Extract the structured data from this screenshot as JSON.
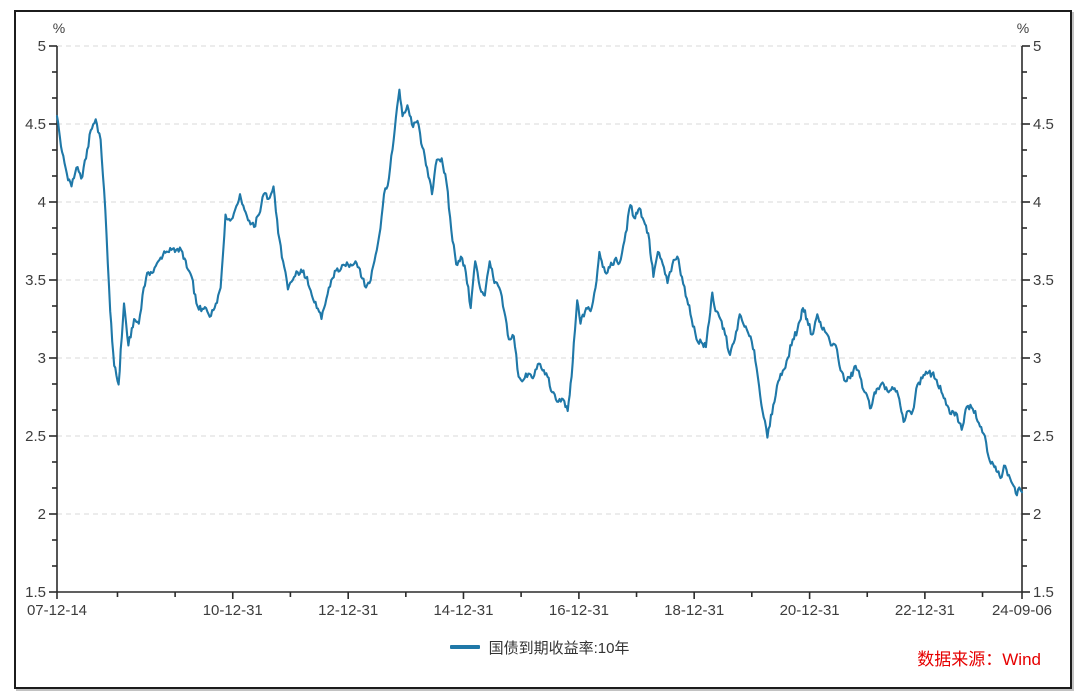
{
  "source_note": {
    "text": "数据来源：Wind",
    "color": "#e60000"
  },
  "chart_data": {
    "type": "line",
    "title": "",
    "legend": {
      "position": "bottom-center",
      "label": "国债到期收益率:10年"
    },
    "y_axis": {
      "unit_label": "%",
      "min": 1.5,
      "max": 5,
      "grid": "dashed",
      "ticks": [
        {
          "value": 5,
          "label": "5"
        },
        {
          "value": 4.5,
          "label": "4.5"
        },
        {
          "value": 4,
          "label": "4"
        },
        {
          "value": 3.5,
          "label": "3.5"
        },
        {
          "value": 3,
          "label": "3"
        },
        {
          "value": 2.5,
          "label": "2.5"
        },
        {
          "value": 2,
          "label": "2"
        },
        {
          "value": 1.5,
          "label": "1.5"
        }
      ]
    },
    "x_axis": {
      "start": "2007-12-14",
      "end": "2024-09-06",
      "ticks": [
        {
          "date": "2007-12-14",
          "label": "07-12-14"
        },
        {
          "date": "2008-12-31",
          "label": ""
        },
        {
          "date": "2009-12-31",
          "label": ""
        },
        {
          "date": "2010-12-31",
          "label": "10-12-31"
        },
        {
          "date": "2011-12-31",
          "label": ""
        },
        {
          "date": "2012-12-31",
          "label": "12-12-31"
        },
        {
          "date": "2013-12-31",
          "label": ""
        },
        {
          "date": "2014-12-31",
          "label": "14-12-31"
        },
        {
          "date": "2015-12-31",
          "label": ""
        },
        {
          "date": "2016-12-31",
          "label": "16-12-31"
        },
        {
          "date": "2017-12-31",
          "label": ""
        },
        {
          "date": "2018-12-31",
          "label": "18-12-31"
        },
        {
          "date": "2019-12-31",
          "label": ""
        },
        {
          "date": "2020-12-31",
          "label": "20-12-31"
        },
        {
          "date": "2021-12-31",
          "label": ""
        },
        {
          "date": "2022-12-31",
          "label": "22-12-31"
        },
        {
          "date": "2023-12-31",
          "label": ""
        },
        {
          "date": "2024-09-06",
          "label": "24-09-06"
        }
      ]
    },
    "style": {
      "line_color": "#1f78a8",
      "grid_color": "#d9d9d9",
      "axis_color": "#2b2b2b",
      "tick_label_color": "#3d3d3d"
    },
    "series": [
      {
        "name": "国债到期收益率:10年",
        "color": "#1f78a8",
        "points": [
          [
            "2007-12-14",
            4.55
          ],
          [
            "2008-01-15",
            4.32
          ],
          [
            "2008-02-15",
            4.18
          ],
          [
            "2008-03-15",
            4.1
          ],
          [
            "2008-04-15",
            4.22
          ],
          [
            "2008-05-15",
            4.15
          ],
          [
            "2008-06-15",
            4.28
          ],
          [
            "2008-07-15",
            4.46
          ],
          [
            "2008-08-15",
            4.53
          ],
          [
            "2008-09-15",
            4.4
          ],
          [
            "2008-10-15",
            3.95
          ],
          [
            "2008-11-15",
            3.3
          ],
          [
            "2008-12-10",
            2.95
          ],
          [
            "2009-01-07",
            2.83
          ],
          [
            "2009-02-10",
            3.35
          ],
          [
            "2009-03-10",
            3.08
          ],
          [
            "2009-04-15",
            3.25
          ],
          [
            "2009-05-15",
            3.22
          ],
          [
            "2009-06-15",
            3.45
          ],
          [
            "2009-07-15",
            3.55
          ],
          [
            "2009-08-15",
            3.55
          ],
          [
            "2009-09-15",
            3.62
          ],
          [
            "2009-10-15",
            3.66
          ],
          [
            "2009-11-15",
            3.68
          ],
          [
            "2009-12-15",
            3.7
          ],
          [
            "2010-01-15",
            3.7
          ],
          [
            "2010-02-15",
            3.68
          ],
          [
            "2010-03-15",
            3.58
          ],
          [
            "2010-04-15",
            3.52
          ],
          [
            "2010-05-15",
            3.35
          ],
          [
            "2010-06-15",
            3.3
          ],
          [
            "2010-07-15",
            3.32
          ],
          [
            "2010-08-15",
            3.27
          ],
          [
            "2010-09-15",
            3.35
          ],
          [
            "2010-10-15",
            3.45
          ],
          [
            "2010-11-15",
            3.92
          ],
          [
            "2010-12-15",
            3.88
          ],
          [
            "2011-01-15",
            3.95
          ],
          [
            "2011-02-15",
            4.05
          ],
          [
            "2011-03-15",
            3.95
          ],
          [
            "2011-04-15",
            3.88
          ],
          [
            "2011-05-15",
            3.84
          ],
          [
            "2011-06-15",
            3.92
          ],
          [
            "2011-07-15",
            4.05
          ],
          [
            "2011-08-15",
            4.02
          ],
          [
            "2011-09-15",
            4.1
          ],
          [
            "2011-10-15",
            3.8
          ],
          [
            "2011-11-15",
            3.62
          ],
          [
            "2011-12-15",
            3.44
          ],
          [
            "2012-01-15",
            3.5
          ],
          [
            "2012-02-15",
            3.55
          ],
          [
            "2012-03-15",
            3.55
          ],
          [
            "2012-04-15",
            3.52
          ],
          [
            "2012-05-15",
            3.4
          ],
          [
            "2012-06-15",
            3.32
          ],
          [
            "2012-07-15",
            3.25
          ],
          [
            "2012-08-15",
            3.38
          ],
          [
            "2012-09-15",
            3.5
          ],
          [
            "2012-10-15",
            3.56
          ],
          [
            "2012-11-15",
            3.57
          ],
          [
            "2012-12-15",
            3.59
          ],
          [
            "2013-01-15",
            3.6
          ],
          [
            "2013-02-15",
            3.62
          ],
          [
            "2013-03-15",
            3.57
          ],
          [
            "2013-04-15",
            3.46
          ],
          [
            "2013-05-15",
            3.48
          ],
          [
            "2013-06-15",
            3.62
          ],
          [
            "2013-07-15",
            3.78
          ],
          [
            "2013-08-15",
            4.05
          ],
          [
            "2013-09-15",
            4.15
          ],
          [
            "2013-10-15",
            4.4
          ],
          [
            "2013-11-20",
            4.72
          ],
          [
            "2013-12-10",
            4.55
          ],
          [
            "2014-01-10",
            4.62
          ],
          [
            "2014-02-15",
            4.48
          ],
          [
            "2014-03-15",
            4.52
          ],
          [
            "2014-04-15",
            4.35
          ],
          [
            "2014-05-15",
            4.22
          ],
          [
            "2014-06-15",
            4.05
          ],
          [
            "2014-07-15",
            4.27
          ],
          [
            "2014-08-15",
            4.28
          ],
          [
            "2014-09-15",
            4.12
          ],
          [
            "2014-10-15",
            3.82
          ],
          [
            "2014-11-15",
            3.6
          ],
          [
            "2014-12-15",
            3.65
          ],
          [
            "2015-01-15",
            3.55
          ],
          [
            "2015-02-15",
            3.32
          ],
          [
            "2015-03-15",
            3.62
          ],
          [
            "2015-04-15",
            3.45
          ],
          [
            "2015-05-15",
            3.4
          ],
          [
            "2015-06-15",
            3.62
          ],
          [
            "2015-07-15",
            3.48
          ],
          [
            "2015-08-15",
            3.45
          ],
          [
            "2015-09-15",
            3.3
          ],
          [
            "2015-10-15",
            3.12
          ],
          [
            "2015-11-15",
            3.14
          ],
          [
            "2015-12-15",
            2.88
          ],
          [
            "2016-01-15",
            2.86
          ],
          [
            "2016-02-15",
            2.9
          ],
          [
            "2016-03-15",
            2.87
          ],
          [
            "2016-04-15",
            2.96
          ],
          [
            "2016-05-15",
            2.92
          ],
          [
            "2016-06-15",
            2.88
          ],
          [
            "2016-07-15",
            2.78
          ],
          [
            "2016-08-15",
            2.72
          ],
          [
            "2016-09-15",
            2.74
          ],
          [
            "2016-10-21",
            2.66
          ],
          [
            "2016-11-15",
            2.88
          ],
          [
            "2016-12-20",
            3.37
          ],
          [
            "2017-01-10",
            3.22
          ],
          [
            "2017-02-15",
            3.32
          ],
          [
            "2017-03-15",
            3.3
          ],
          [
            "2017-04-15",
            3.45
          ],
          [
            "2017-05-10",
            3.68
          ],
          [
            "2017-06-15",
            3.55
          ],
          [
            "2017-07-15",
            3.58
          ],
          [
            "2017-08-15",
            3.63
          ],
          [
            "2017-09-15",
            3.61
          ],
          [
            "2017-10-15",
            3.75
          ],
          [
            "2017-11-22",
            3.98
          ],
          [
            "2017-12-15",
            3.9
          ],
          [
            "2018-01-18",
            3.96
          ],
          [
            "2018-02-15",
            3.88
          ],
          [
            "2018-03-15",
            3.8
          ],
          [
            "2018-04-17",
            3.52
          ],
          [
            "2018-05-15",
            3.68
          ],
          [
            "2018-06-15",
            3.6
          ],
          [
            "2018-07-15",
            3.48
          ],
          [
            "2018-08-15",
            3.6
          ],
          [
            "2018-09-15",
            3.65
          ],
          [
            "2018-10-15",
            3.52
          ],
          [
            "2018-11-15",
            3.38
          ],
          [
            "2018-12-15",
            3.25
          ],
          [
            "2019-01-15",
            3.12
          ],
          [
            "2019-02-15",
            3.1
          ],
          [
            "2019-03-15",
            3.07
          ],
          [
            "2019-04-25",
            3.42
          ],
          [
            "2019-05-15",
            3.3
          ],
          [
            "2019-06-15",
            3.25
          ],
          [
            "2019-07-15",
            3.15
          ],
          [
            "2019-08-15",
            3.02
          ],
          [
            "2019-09-15",
            3.12
          ],
          [
            "2019-10-15",
            3.28
          ],
          [
            "2019-11-15",
            3.2
          ],
          [
            "2019-12-15",
            3.14
          ],
          [
            "2020-01-15",
            3.05
          ],
          [
            "2020-02-15",
            2.82
          ],
          [
            "2020-03-15",
            2.62
          ],
          [
            "2020-04-08",
            2.49
          ],
          [
            "2020-05-15",
            2.7
          ],
          [
            "2020-06-15",
            2.85
          ],
          [
            "2020-07-15",
            2.92
          ],
          [
            "2020-08-15",
            3.0
          ],
          [
            "2020-09-15",
            3.12
          ],
          [
            "2020-10-15",
            3.18
          ],
          [
            "2020-11-19",
            3.32
          ],
          [
            "2020-12-15",
            3.25
          ],
          [
            "2021-01-15",
            3.15
          ],
          [
            "2021-02-18",
            3.28
          ],
          [
            "2021-03-15",
            3.2
          ],
          [
            "2021-04-15",
            3.16
          ],
          [
            "2021-05-15",
            3.08
          ],
          [
            "2021-06-15",
            3.08
          ],
          [
            "2021-07-15",
            2.92
          ],
          [
            "2021-08-15",
            2.85
          ],
          [
            "2021-09-15",
            2.87
          ],
          [
            "2021-10-18",
            2.95
          ],
          [
            "2021-11-15",
            2.88
          ],
          [
            "2021-12-15",
            2.78
          ],
          [
            "2022-01-24",
            2.68
          ],
          [
            "2022-02-15",
            2.78
          ],
          [
            "2022-03-15",
            2.8
          ],
          [
            "2022-04-15",
            2.83
          ],
          [
            "2022-05-15",
            2.78
          ],
          [
            "2022-06-15",
            2.8
          ],
          [
            "2022-07-15",
            2.76
          ],
          [
            "2022-08-18",
            2.59
          ],
          [
            "2022-09-15",
            2.66
          ],
          [
            "2022-10-15",
            2.66
          ],
          [
            "2022-11-14",
            2.83
          ],
          [
            "2022-12-15",
            2.87
          ],
          [
            "2023-01-15",
            2.9
          ],
          [
            "2023-02-15",
            2.9
          ],
          [
            "2023-03-15",
            2.86
          ],
          [
            "2023-04-15",
            2.78
          ],
          [
            "2023-05-15",
            2.7
          ],
          [
            "2023-06-15",
            2.64
          ],
          [
            "2023-07-15",
            2.65
          ],
          [
            "2023-08-21",
            2.54
          ],
          [
            "2023-09-15",
            2.67
          ],
          [
            "2023-10-15",
            2.7
          ],
          [
            "2023-11-15",
            2.66
          ],
          [
            "2023-12-15",
            2.56
          ],
          [
            "2024-01-15",
            2.5
          ],
          [
            "2024-02-15",
            2.34
          ],
          [
            "2024-03-15",
            2.3
          ],
          [
            "2024-04-23",
            2.23
          ],
          [
            "2024-05-15",
            2.31
          ],
          [
            "2024-06-15",
            2.25
          ],
          [
            "2024-07-15",
            2.18
          ],
          [
            "2024-08-05",
            2.12
          ],
          [
            "2024-08-20",
            2.17
          ],
          [
            "2024-09-06",
            2.14
          ]
        ]
      }
    ]
  }
}
